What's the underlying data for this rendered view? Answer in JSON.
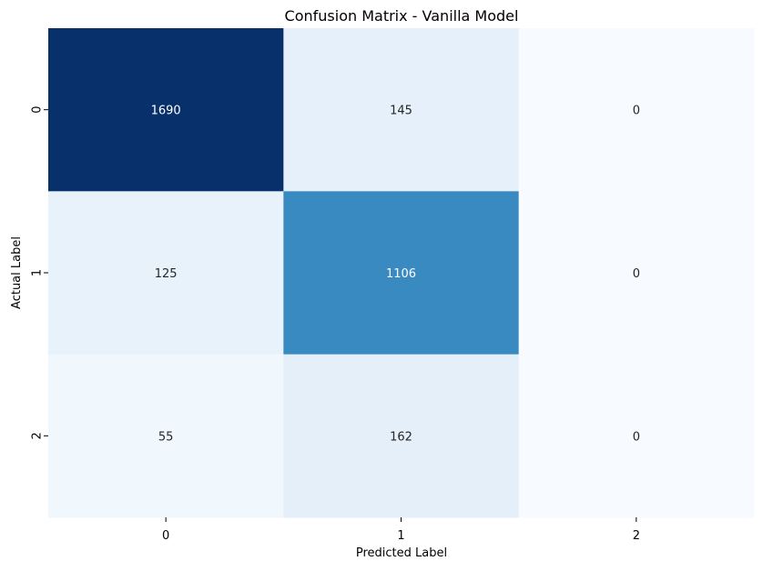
{
  "chart_data": {
    "type": "heatmap",
    "title": "Confusion Matrix - Vanilla Model",
    "xlabel": "Predicted Label",
    "ylabel": "Actual Label",
    "x_categories": [
      "0",
      "1",
      "2"
    ],
    "y_categories": [
      "0",
      "1",
      "2"
    ],
    "values": [
      [
        1690,
        145,
        0
      ],
      [
        125,
        1106,
        0
      ],
      [
        55,
        162,
        0
      ]
    ],
    "colormap": "Blues",
    "color_min": 0,
    "color_max": 1690,
    "colorbar": false,
    "annotations": true
  }
}
